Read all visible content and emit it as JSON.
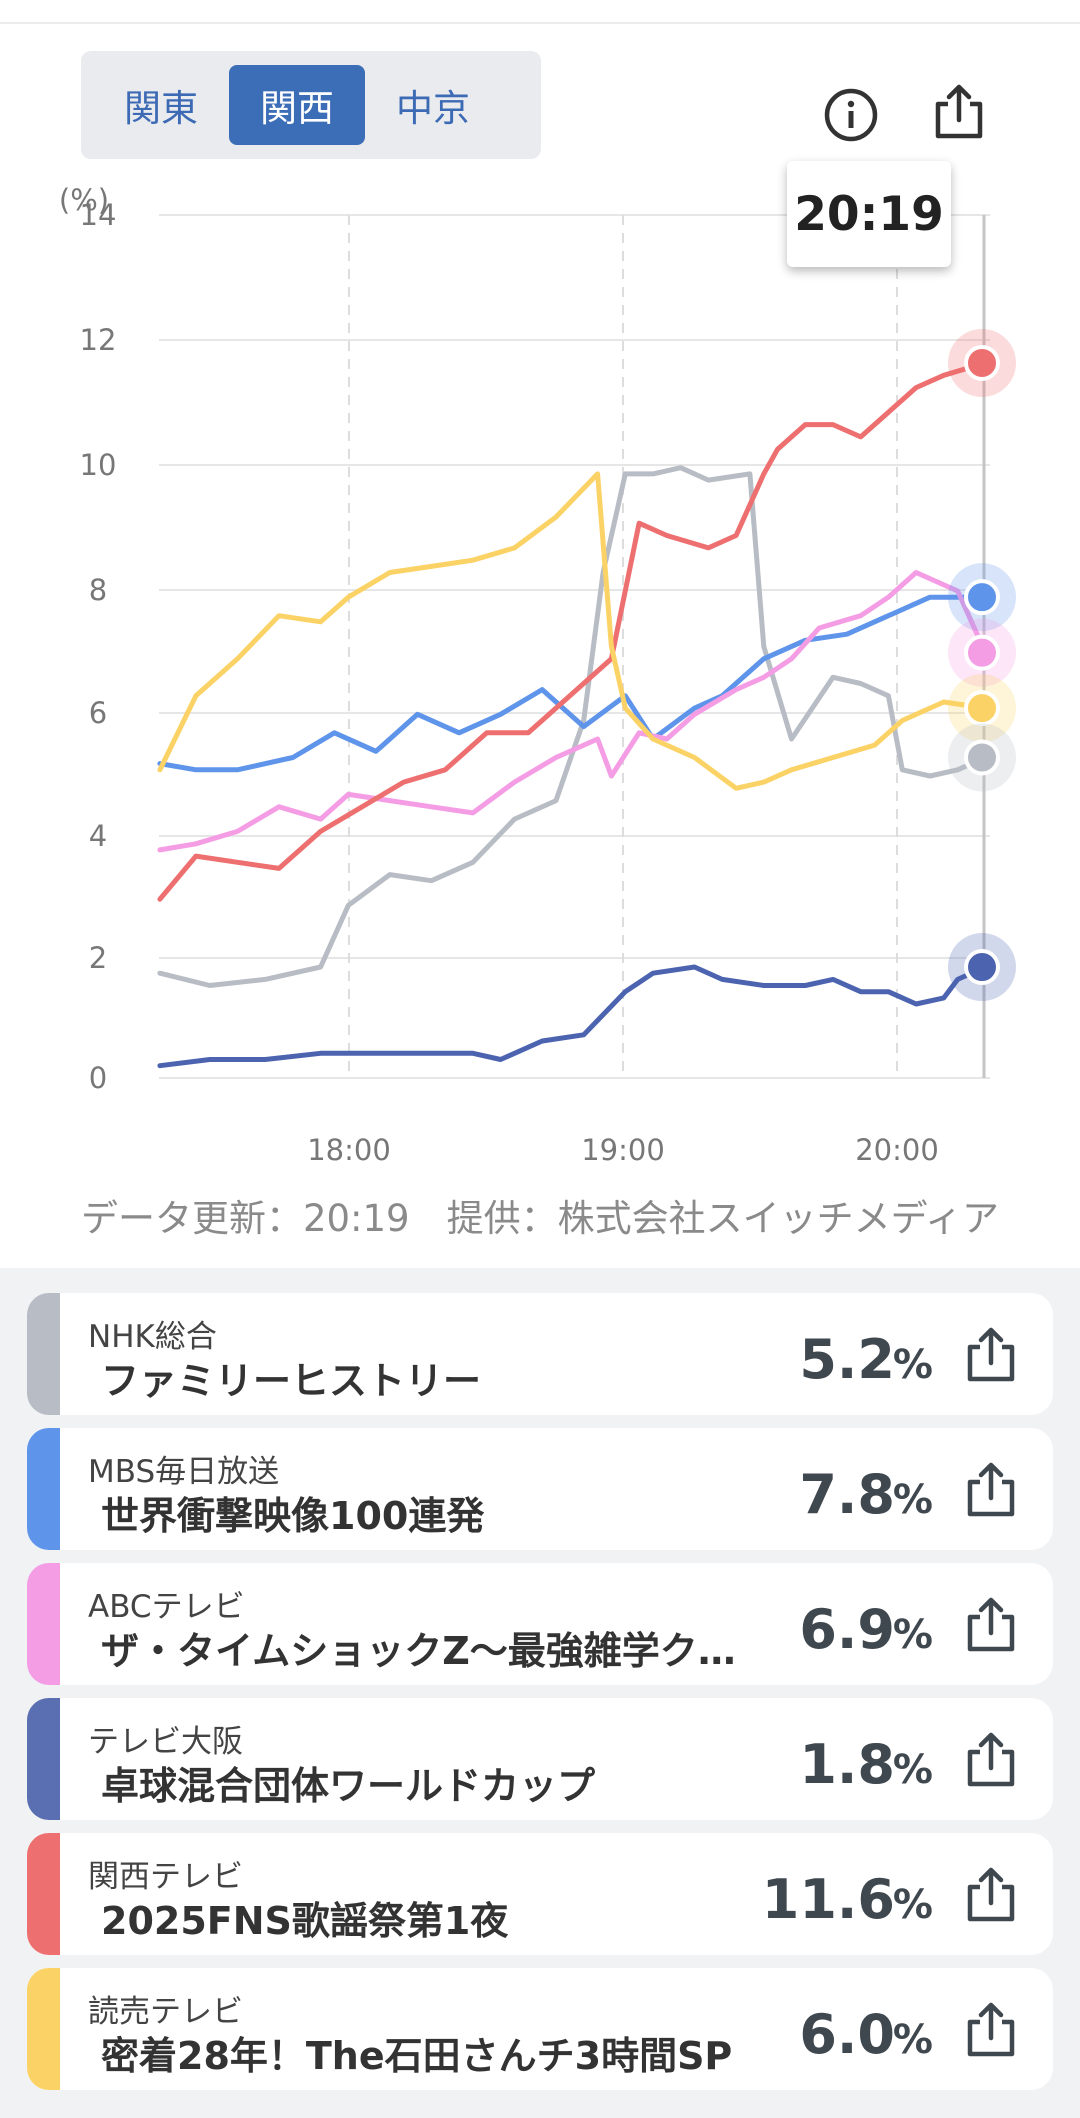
{
  "region_tabs": [
    {
      "label": "関東",
      "active": false
    },
    {
      "label": "関西",
      "active": true
    },
    {
      "label": "中京",
      "active": false
    }
  ],
  "header": {
    "info_icon": "info-icon",
    "share_icon": "share-icon"
  },
  "tooltip": {
    "time": "20:19"
  },
  "chart_data": {
    "type": "line",
    "ylabel": "(%)",
    "yticks": [
      "14",
      "12",
      "10",
      "8",
      "6",
      "4",
      "2",
      "0"
    ],
    "xticks": [
      "18:00",
      "19:00",
      "20:00"
    ],
    "ylim": [
      0,
      14
    ],
    "x_time_range": [
      "17:19",
      "20:19"
    ],
    "grid": true,
    "cursor_time": "20:19",
    "series": [
      {
        "name": "NHK総合",
        "color": "#b8bcc4",
        "x": [
          17.32,
          17.5,
          17.7,
          17.9,
          18.0,
          18.15,
          18.3,
          18.45,
          18.6,
          18.75,
          18.85,
          18.92,
          19.0,
          19.1,
          19.2,
          19.3,
          19.45,
          19.5,
          19.6,
          19.75,
          19.85,
          19.95,
          20.0,
          20.1,
          20.2,
          20.3
        ],
        "values": [
          1.7,
          1.5,
          1.6,
          1.8,
          2.8,
          3.3,
          3.2,
          3.5,
          4.2,
          4.5,
          5.8,
          8.2,
          9.8,
          9.8,
          9.9,
          9.7,
          9.8,
          7.0,
          5.5,
          6.5,
          6.4,
          6.2,
          5.0,
          4.9,
          5.0,
          5.2
        ]
      },
      {
        "name": "MBS毎日放送",
        "color": "#5f94eb",
        "x": [
          17.32,
          17.45,
          17.6,
          17.8,
          17.95,
          18.1,
          18.25,
          18.4,
          18.55,
          18.7,
          18.85,
          19.0,
          19.1,
          19.25,
          19.35,
          19.5,
          19.65,
          19.8,
          19.95,
          20.1,
          20.3
        ],
        "values": [
          5.1,
          5.0,
          5.0,
          5.2,
          5.6,
          5.3,
          5.9,
          5.6,
          5.9,
          6.3,
          5.7,
          6.2,
          5.5,
          6.0,
          6.2,
          6.8,
          7.1,
          7.2,
          7.5,
          7.8,
          7.8
        ]
      },
      {
        "name": "ABCテレビ",
        "color": "#f49de5",
        "x": [
          17.32,
          17.45,
          17.6,
          17.75,
          17.9,
          18.0,
          18.15,
          18.3,
          18.45,
          18.6,
          18.75,
          18.9,
          18.95,
          19.05,
          19.15,
          19.25,
          19.4,
          19.5,
          19.6,
          19.7,
          19.85,
          19.95,
          20.05,
          20.2,
          20.3
        ],
        "values": [
          3.7,
          3.8,
          4.0,
          4.4,
          4.2,
          4.6,
          4.5,
          4.4,
          4.3,
          4.8,
          5.2,
          5.5,
          4.9,
          5.6,
          5.5,
          5.9,
          6.3,
          6.5,
          6.8,
          7.3,
          7.5,
          7.8,
          8.2,
          7.9,
          6.9
        ]
      },
      {
        "name": "テレビ大阪",
        "color": "#4c64b0",
        "x": [
          17.32,
          17.5,
          17.7,
          17.9,
          18.1,
          18.3,
          18.45,
          18.55,
          18.7,
          18.85,
          19.0,
          19.1,
          19.25,
          19.35,
          19.5,
          19.65,
          19.75,
          19.85,
          19.95,
          20.05,
          20.15,
          20.2,
          20.3
        ],
        "values": [
          0.2,
          0.3,
          0.3,
          0.4,
          0.4,
          0.4,
          0.4,
          0.3,
          0.6,
          0.7,
          1.4,
          1.7,
          1.8,
          1.6,
          1.5,
          1.5,
          1.6,
          1.4,
          1.4,
          1.2,
          1.3,
          1.6,
          1.8
        ]
      },
      {
        "name": "関西テレビ",
        "color": "#ee6f6f",
        "x": [
          17.32,
          17.45,
          17.6,
          17.75,
          17.9,
          18.05,
          18.2,
          18.35,
          18.5,
          18.65,
          18.8,
          18.95,
          19.05,
          19.15,
          19.3,
          19.4,
          19.5,
          19.55,
          19.65,
          19.75,
          19.85,
          19.95,
          20.05,
          20.15,
          20.3
        ],
        "values": [
          2.9,
          3.6,
          3.5,
          3.4,
          4.0,
          4.4,
          4.8,
          5.0,
          5.6,
          5.6,
          6.2,
          6.8,
          9.0,
          8.8,
          8.6,
          8.8,
          9.8,
          10.2,
          10.6,
          10.6,
          10.4,
          10.8,
          11.2,
          11.4,
          11.6
        ]
      },
      {
        "name": "読売テレビ",
        "color": "#fbd265",
        "x": [
          17.32,
          17.45,
          17.6,
          17.75,
          17.9,
          18.0,
          18.15,
          18.3,
          18.45,
          18.6,
          18.75,
          18.9,
          18.95,
          19.0,
          19.1,
          19.25,
          19.4,
          19.5,
          19.6,
          19.75,
          19.9,
          20.0,
          20.15,
          20.3
        ],
        "values": [
          5.0,
          6.2,
          6.8,
          7.5,
          7.4,
          7.8,
          8.2,
          8.3,
          8.4,
          8.6,
          9.1,
          9.8,
          7.0,
          6.0,
          5.5,
          5.2,
          4.7,
          4.8,
          5.0,
          5.2,
          5.4,
          5.8,
          6.1,
          6.0
        ]
      }
    ],
    "end_markers": [
      {
        "name": "関西テレビ",
        "value": 11.6,
        "color": "#ee6f6f"
      },
      {
        "name": "MBS毎日放送",
        "value": 7.8,
        "color": "#5f94eb"
      },
      {
        "name": "ABCテレビ",
        "value": 6.9,
        "color": "#f49de5"
      },
      {
        "name": "読売テレビ",
        "value": 6.0,
        "color": "#fbd265"
      },
      {
        "name": "NHK総合",
        "value": 5.2,
        "color": "#b8bcc4"
      },
      {
        "name": "テレビ大阪",
        "value": 1.8,
        "color": "#4c64b0"
      }
    ]
  },
  "caption": "データ更新：20:19　提供：株式会社スイッチメディア",
  "channels": [
    {
      "channel": "NHK総合",
      "program": "ファミリーヒストリー",
      "rating": "5.2",
      "unit": "%",
      "color": "#b8bcc4"
    },
    {
      "channel": "MBS毎日放送",
      "program": "世界衝撃映像100連発",
      "rating": "7.8",
      "unit": "%",
      "color": "#5f94eb"
    },
    {
      "channel": "ABCテレビ",
      "program": "ザ・タイムショックZ〜最強雑学ク…",
      "rating": "6.9",
      "unit": "%",
      "color": "#f49de5"
    },
    {
      "channel": "テレビ大阪",
      "program": "卓球混合団体ワールドカップ",
      "rating": "1.8",
      "unit": "%",
      "color": "#5a6eb2"
    },
    {
      "channel": "関西テレビ",
      "program": "2025FNS歌謡祭第1夜",
      "rating": "11.6",
      "unit": "%",
      "color": "#ee6f6f"
    },
    {
      "channel": "読売テレビ",
      "program": "密着28年！The石田さんチ3時間SP",
      "rating": "6.0",
      "unit": "%",
      "color": "#fbd265"
    }
  ]
}
